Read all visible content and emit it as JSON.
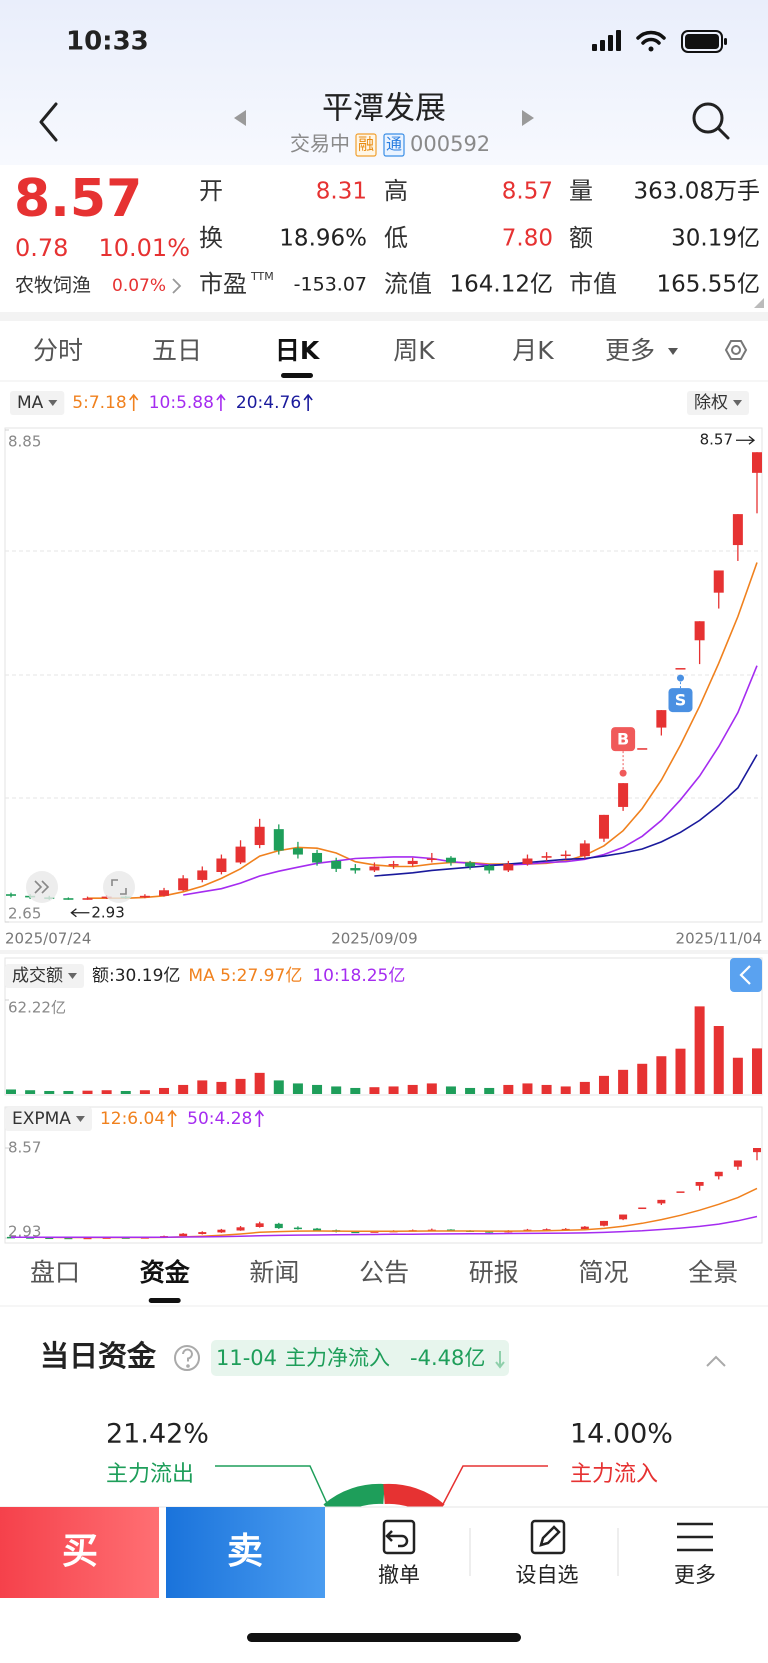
{
  "status_bar": {
    "time": "10:33"
  },
  "header": {
    "title": "平潭发展",
    "status": "交易中",
    "badges": [
      "融",
      "通"
    ],
    "code": "000592"
  },
  "quote": {
    "price": "8.57",
    "change": "0.78",
    "change_pct": "10.01%",
    "sector": "农牧饲渔",
    "sector_pct": "0.07%",
    "fields": [
      {
        "label": "开",
        "value": "8.31",
        "color": "#e63232"
      },
      {
        "label": "高",
        "value": "8.57",
        "color": "#e63232"
      },
      {
        "label": "量",
        "value": "363.08万手",
        "color": "#222222"
      },
      {
        "label": "换",
        "value": "18.96%",
        "color": "#222222"
      },
      {
        "label": "低",
        "value": "7.80",
        "color": "#e63232"
      },
      {
        "label": "额",
        "value": "30.19亿",
        "color": "#222222"
      },
      {
        "label": "市盈",
        "sup": "TTM",
        "value": "-153.07",
        "color": "#222222"
      },
      {
        "label": "流值",
        "value": "164.12亿",
        "color": "#222222"
      },
      {
        "label": "市值",
        "value": "165.55亿",
        "color": "#222222"
      }
    ]
  },
  "period_tabs": {
    "items": [
      "分时",
      "五日",
      "日K",
      "周K",
      "月K",
      "更多"
    ],
    "active": 2
  },
  "chart_data": [
    {
      "type": "candlestick",
      "indicator": "MA",
      "adjust": "除权",
      "categories": [
        "2025/07/24",
        null,
        null,
        null,
        null,
        null,
        null,
        null,
        null,
        null,
        null,
        null,
        null,
        null,
        null,
        null,
        null,
        null,
        null,
        "2025/09/09",
        null,
        null,
        null,
        null,
        null,
        null,
        null,
        null,
        null,
        null,
        null,
        null,
        null,
        null,
        null,
        null,
        null,
        null,
        null,
        "2025/11/04"
      ],
      "open": [
        3.0,
        2.98,
        2.96,
        2.95,
        2.93,
        2.95,
        2.97,
        2.96,
        2.98,
        3.05,
        3.18,
        3.28,
        3.4,
        3.62,
        3.82,
        3.58,
        3.52,
        3.42,
        3.33,
        3.3,
        3.36,
        3.38,
        3.44,
        3.46,
        3.4,
        3.36,
        3.3,
        3.38,
        3.46,
        3.5,
        3.48,
        3.7,
        4.1,
        4.84,
        5.1,
        5.85,
        6.2,
        6.8,
        7.4,
        8.31
      ],
      "high": [
        3.02,
        3.0,
        2.98,
        2.96,
        2.97,
        2.99,
        2.98,
        3.0,
        3.08,
        3.24,
        3.35,
        3.5,
        3.68,
        3.95,
        3.88,
        3.66,
        3.56,
        3.46,
        3.38,
        3.4,
        3.42,
        3.46,
        3.52,
        3.48,
        3.42,
        3.38,
        3.42,
        3.5,
        3.53,
        3.55,
        3.68,
        4.0,
        4.4,
        4.84,
        5.32,
        5.85,
        6.44,
        7.08,
        7.79,
        8.57
      ],
      "low": [
        2.96,
        2.94,
        2.93,
        2.93,
        2.93,
        2.94,
        2.94,
        2.95,
        2.97,
        3.04,
        3.15,
        3.25,
        3.38,
        3.58,
        3.5,
        3.45,
        3.36,
        3.28,
        3.26,
        3.28,
        3.32,
        3.35,
        3.4,
        3.36,
        3.31,
        3.26,
        3.28,
        3.36,
        3.42,
        3.44,
        3.45,
        3.66,
        4.05,
        4.84,
        5.0,
        5.85,
        5.9,
        6.6,
        7.2,
        7.8
      ],
      "close": [
        2.98,
        2.96,
        2.95,
        2.93,
        2.95,
        2.97,
        2.96,
        2.98,
        3.05,
        3.2,
        3.3,
        3.45,
        3.6,
        3.85,
        3.55,
        3.5,
        3.4,
        3.32,
        3.3,
        3.35,
        3.38,
        3.42,
        3.45,
        3.4,
        3.35,
        3.3,
        3.38,
        3.45,
        3.48,
        3.5,
        3.64,
        4.0,
        4.4,
        4.84,
        5.32,
        5.85,
        6.44,
        7.08,
        7.79,
        8.57
      ],
      "series": [
        {
          "name": "5:7.18",
          "color": "#f0811e",
          "values": [
            null,
            null,
            null,
            null,
            2.95,
            2.95,
            2.95,
            2.96,
            2.98,
            3.03,
            3.1,
            3.2,
            3.32,
            3.48,
            3.55,
            3.59,
            3.58,
            3.52,
            3.41,
            3.37,
            3.35,
            3.35,
            3.38,
            3.4,
            3.4,
            3.38,
            3.38,
            3.38,
            3.39,
            3.42,
            3.49,
            3.61,
            3.8,
            4.08,
            4.44,
            4.88,
            5.37,
            5.91,
            6.5,
            7.18
          ]
        },
        {
          "name": "10:5.88",
          "color": "#a52cf0",
          "values": [
            null,
            null,
            null,
            null,
            null,
            null,
            null,
            null,
            null,
            2.99,
            3.03,
            3.07,
            3.14,
            3.23,
            3.29,
            3.34,
            3.39,
            3.42,
            3.45,
            3.46,
            3.47,
            3.47,
            3.45,
            3.41,
            3.39,
            3.37,
            3.37,
            3.38,
            3.4,
            3.41,
            3.44,
            3.5,
            3.59,
            3.73,
            3.93,
            4.19,
            4.49,
            4.86,
            5.29,
            5.88
          ]
        },
        {
          "name": "20:4.76",
          "color": "#1a1a9c",
          "values": [
            null,
            null,
            null,
            null,
            null,
            null,
            null,
            null,
            null,
            null,
            null,
            null,
            null,
            null,
            null,
            null,
            null,
            null,
            null,
            3.23,
            3.25,
            3.27,
            3.3,
            3.32,
            3.34,
            3.36,
            3.38,
            3.4,
            3.42,
            3.44,
            3.45,
            3.48,
            3.52,
            3.57,
            3.66,
            3.78,
            3.93,
            4.12,
            4.34,
            4.76
          ]
        }
      ],
      "ylim": [
        2.65,
        8.85
      ],
      "yticks": [
        2.65,
        8.85
      ],
      "grid": true,
      "up_color": "#e63232",
      "down_color": "#1e9e5a",
      "max_label": {
        "value": 8.57,
        "index": 39
      },
      "min_label": {
        "value": 2.93,
        "index": 3
      },
      "markers": [
        {
          "label": "B",
          "index": 32,
          "color": "#f05a5a"
        },
        {
          "label": "S",
          "index": 35,
          "color": "#4a90e2"
        }
      ]
    },
    {
      "type": "bar",
      "indicator": "成交额",
      "label": "额:30.19亿",
      "legend": [
        {
          "name": "MA 5:27.97亿",
          "color": "#f0811e"
        },
        {
          "name": "10:18.25亿",
          "color": "#a52cf0"
        }
      ],
      "values": [
        3,
        2.5,
        2,
        2,
        2.2,
        2.5,
        2,
        2.5,
        4,
        6,
        9,
        8,
        10,
        14,
        9,
        7,
        6,
        5,
        4,
        4.5,
        5,
        6,
        7,
        5,
        4,
        4,
        6,
        7,
        6,
        5,
        8,
        12,
        16,
        20,
        25,
        30,
        58,
        45,
        24,
        30.19
      ],
      "ylim": [
        0,
        62.22
      ],
      "yticks": [
        {
          "value": 62.22,
          "label": "62.22亿"
        }
      ]
    },
    {
      "type": "line",
      "indicator": "EXPMA",
      "series": [
        {
          "name": "12:6.04",
          "color": "#f0811e",
          "values": [
            2.98,
            2.98,
            2.97,
            2.96,
            2.96,
            2.96,
            2.96,
            2.96,
            2.97,
            3.0,
            3.04,
            3.1,
            3.18,
            3.29,
            3.33,
            3.36,
            3.37,
            3.36,
            3.35,
            3.35,
            3.35,
            3.36,
            3.37,
            3.37,
            3.37,
            3.36,
            3.36,
            3.37,
            3.39,
            3.41,
            3.45,
            3.53,
            3.67,
            3.85,
            4.08,
            4.35,
            4.67,
            5.04,
            5.46,
            6.04
          ]
        },
        {
          "name": "50:4.28",
          "color": "#a52cf0",
          "values": [
            2.98,
            2.98,
            2.98,
            2.98,
            2.98,
            2.98,
            2.98,
            2.98,
            2.98,
            2.99,
            3.0,
            3.02,
            3.04,
            3.07,
            3.09,
            3.11,
            3.12,
            3.13,
            3.14,
            3.15,
            3.16,
            3.17,
            3.18,
            3.19,
            3.2,
            3.2,
            3.21,
            3.22,
            3.23,
            3.24,
            3.25,
            3.28,
            3.33,
            3.38,
            3.46,
            3.55,
            3.66,
            3.8,
            4.01,
            4.28
          ]
        }
      ],
      "ylim": [
        2.93,
        8.57
      ],
      "yticks": [
        2.93,
        8.57
      ]
    }
  ],
  "info_tabs": {
    "items": [
      "盘口",
      "资金",
      "新闻",
      "公告",
      "研报",
      "简况",
      "全景"
    ],
    "active": 1
  },
  "fund": {
    "title": "当日资金",
    "date": "11-04",
    "net_label": "主力净流入",
    "net_value": "-4.48亿",
    "out_pct": "21.42%",
    "out_label": "主力流出",
    "in_pct": "14.00%",
    "in_label": "主力流入"
  },
  "bottom_bar": {
    "buy": "买",
    "sell": "卖",
    "actions": [
      "撤单",
      "设自选",
      "更多"
    ]
  }
}
